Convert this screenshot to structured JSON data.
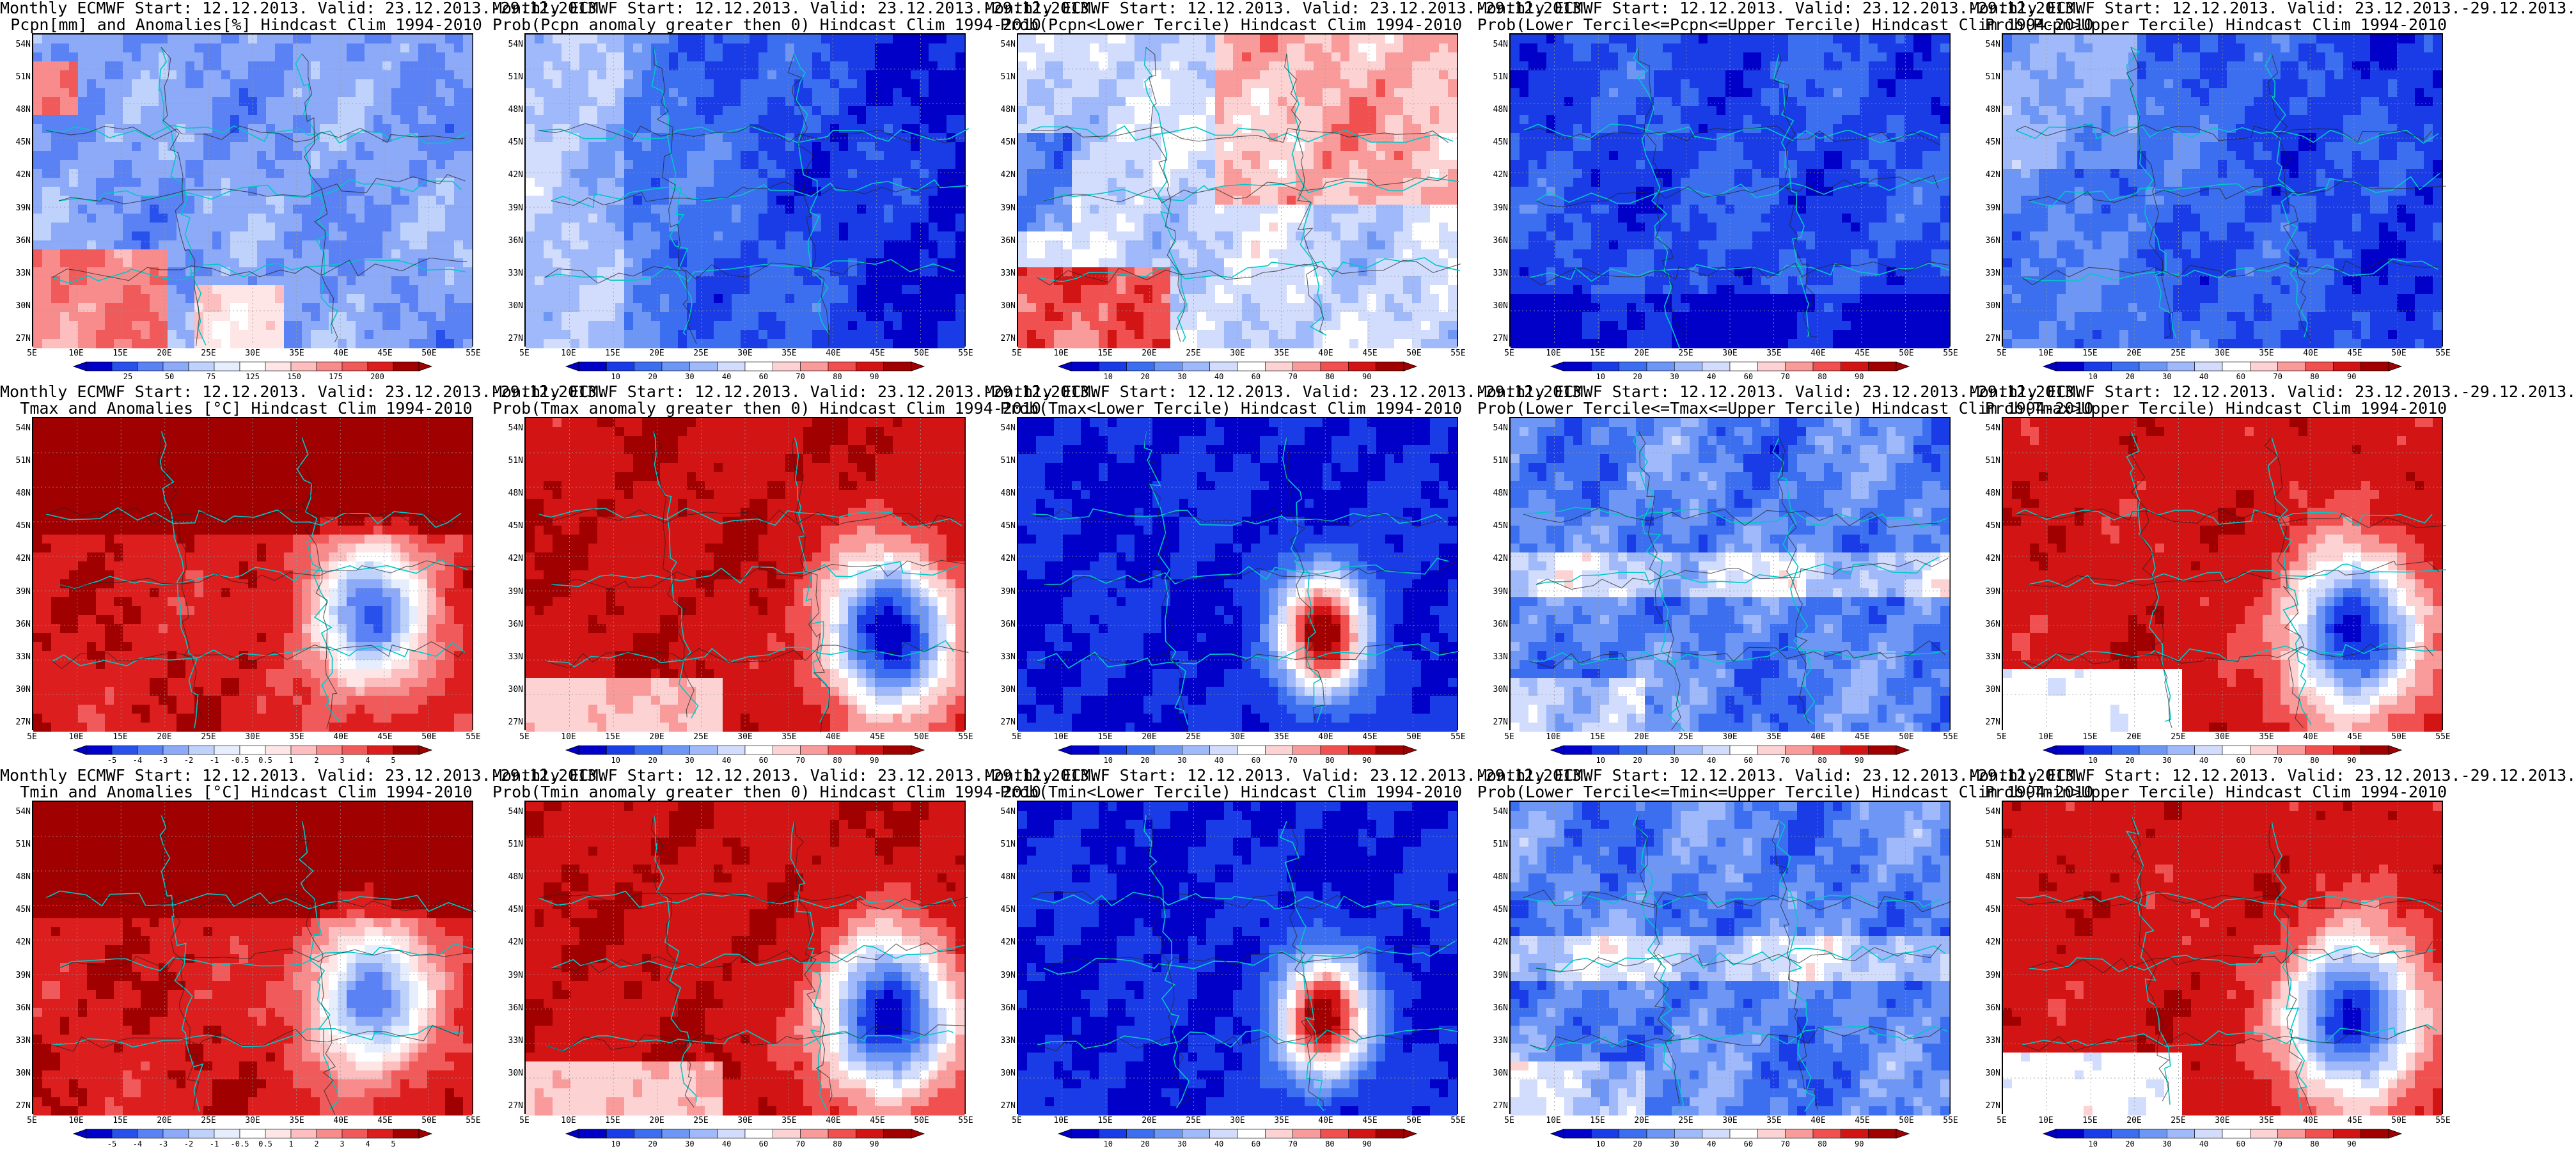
{
  "figure": {
    "lat_labels": [
      "54N",
      "51N",
      "48N",
      "45N",
      "42N",
      "39N",
      "36N",
      "33N",
      "30N",
      "27N"
    ],
    "lon_labels": [
      "5E",
      "10E",
      "15E",
      "20E",
      "25E",
      "30E",
      "35E",
      "40E",
      "45E",
      "50E",
      "55E"
    ],
    "palettes": {
      "prob": [
        "#0000c8",
        "#1a3ce6",
        "#3c6ef0",
        "#6e96f5",
        "#a0b9fa",
        "#d2dcfc",
        "#ffffff",
        "#fcd2d2",
        "#fa9b9b",
        "#f05050",
        "#d21414",
        "#a00000"
      ],
      "anom": [
        "#0000c8",
        "#2850eb",
        "#5a82f5",
        "#8caaf8",
        "#bed2fc",
        "#e6eefe",
        "#ffffff",
        "#fee6e6",
        "#fcbebe",
        "#f88c8c",
        "#f05a5a",
        "#dc1e1e",
        "#a00000"
      ]
    },
    "colorbars": {
      "precip": [
        "25",
        "50",
        "75",
        "125",
        "150",
        "175",
        "200"
      ],
      "anom": [
        "-5",
        "-4",
        "-3",
        "-2",
        "-1",
        "-0.5",
        "0.5",
        "1",
        "2",
        "3",
        "4",
        "5"
      ],
      "prob": [
        "10",
        "20",
        "30",
        "40",
        "60",
        "70",
        "80",
        "90"
      ]
    },
    "rows": [
      {
        "name": "precip",
        "panels": [
          {
            "line1": "Monthly ECMWF Start: 12.12.2013. Valid: 23.12.2013.-29.12.2013.",
            "line2": "Pcpn[mm] and Anomalies[%] Hindcast Clim 1994-2010",
            "bar": "precip",
            "pattern": "pcp_anom"
          },
          {
            "line1": "Monthly ECMWF Start: 12.12.2013. Valid: 23.12.2013.-29.12.2013.",
            "line2": "Prob(Pcpn anomaly greater then 0) Hindcast Clim 1994-2010",
            "bar": "prob",
            "pattern": "pcp_gt0"
          },
          {
            "line1": "Monthly ECMWF Start: 12.12.2013. Valid: 23.12.2013.-29.12.2013.",
            "line2": "Prob(Pcpn<Lower Tercile) Hindcast Clim 1994-2010",
            "bar": "prob",
            "pattern": "pcp_low"
          },
          {
            "line1": "Monthly ECMWF Start: 12.12.2013. Valid: 23.12.2013.-29.12.2013.",
            "line2": "Prob(Lower Tercile<=Pcpn<=Upper Tercile) Hindcast Clim 1994-2010",
            "bar": "prob",
            "pattern": "pcp_mid"
          },
          {
            "line1": "Monthly ECMWF Start: 12.12.2013. Valid: 23.12.2013.-29.12.2013.",
            "line2": "Prob(Pcpn>Upper Tercile) Hindcast Clim 1994-2010",
            "bar": "prob",
            "pattern": "pcp_up"
          }
        ]
      },
      {
        "name": "tmax",
        "panels": [
          {
            "line1": "Monthly ECMWF Start: 12.12.2013. Valid: 23.12.2013.-29.12.2013.",
            "line2": "Tmax and Anomalies [°C] Hindcast Clim 1994-2010",
            "bar": "anom",
            "pattern": "t_anom"
          },
          {
            "line1": "Monthly ECMWF Start: 12.12.2013. Valid: 23.12.2013.-29.12.2013.",
            "line2": "Prob(Tmax anomaly greater then 0) Hindcast Clim 1994-2010",
            "bar": "prob",
            "pattern": "t_gt0"
          },
          {
            "line1": "Monthly ECMWF Start: 12.12.2013. Valid: 23.12.2013.-29.12.2013.",
            "line2": "Prob(Tmax<Lower Tercile) Hindcast Clim 1994-2010",
            "bar": "prob",
            "pattern": "t_low"
          },
          {
            "line1": "Monthly ECMWF Start: 12.12.2013. Valid: 23.12.2013.-29.12.2013.",
            "line2": "Prob(Lower Tercile<=Tmax<=Upper Tercile) Hindcast Clim 1994-2010",
            "bar": "prob",
            "pattern": "t_mid"
          },
          {
            "line1": "Monthly ECMWF Start: 12.12.2013. Valid: 23.12.2013.-29.12.2013.",
            "line2": "Prob(Tmax>Upper Tercile) Hindcast Clim 1994-2010",
            "bar": "prob",
            "pattern": "t_up"
          }
        ]
      },
      {
        "name": "tmin",
        "panels": [
          {
            "line1": "Monthly ECMWF Start: 12.12.2013. Valid: 23.12.2013.-29.12.2013.",
            "line2": "Tmin and Anomalies [°C] Hindcast Clim 1994-2010",
            "bar": "anom",
            "pattern": "t_anom"
          },
          {
            "line1": "Monthly ECMWF Start: 12.12.2013. Valid: 23.12.2013.-29.12.2013.",
            "line2": "Prob(Tmin anomaly greater then 0) Hindcast Clim 1994-2010",
            "bar": "prob",
            "pattern": "t_gt0"
          },
          {
            "line1": "Monthly ECMWF Start: 12.12.2013. Valid: 23.12.2013.-29.12.2013.",
            "line2": "Prob(Tmin<Lower Tercile) Hindcast Clim 1994-2010",
            "bar": "prob",
            "pattern": "t_low"
          },
          {
            "line1": "Monthly ECMWF Start: 12.12.2013. Valid: 23.12.2013.-29.12.2013.",
            "line2": "Prob(Lower Tercile<=Tmin<=Upper Tercile) Hindcast Clim 1994-2010",
            "bar": "prob",
            "pattern": "t_mid"
          },
          {
            "line1": "Monthly ECMWF Start: 12.12.2013. Valid: 23.12.2013.-29.12.2013.",
            "line2": "Prob(Tmin>Upper Tercile) Hindcast Clim 1994-2010",
            "bar": "prob",
            "pattern": "t_up"
          }
        ]
      }
    ]
  }
}
